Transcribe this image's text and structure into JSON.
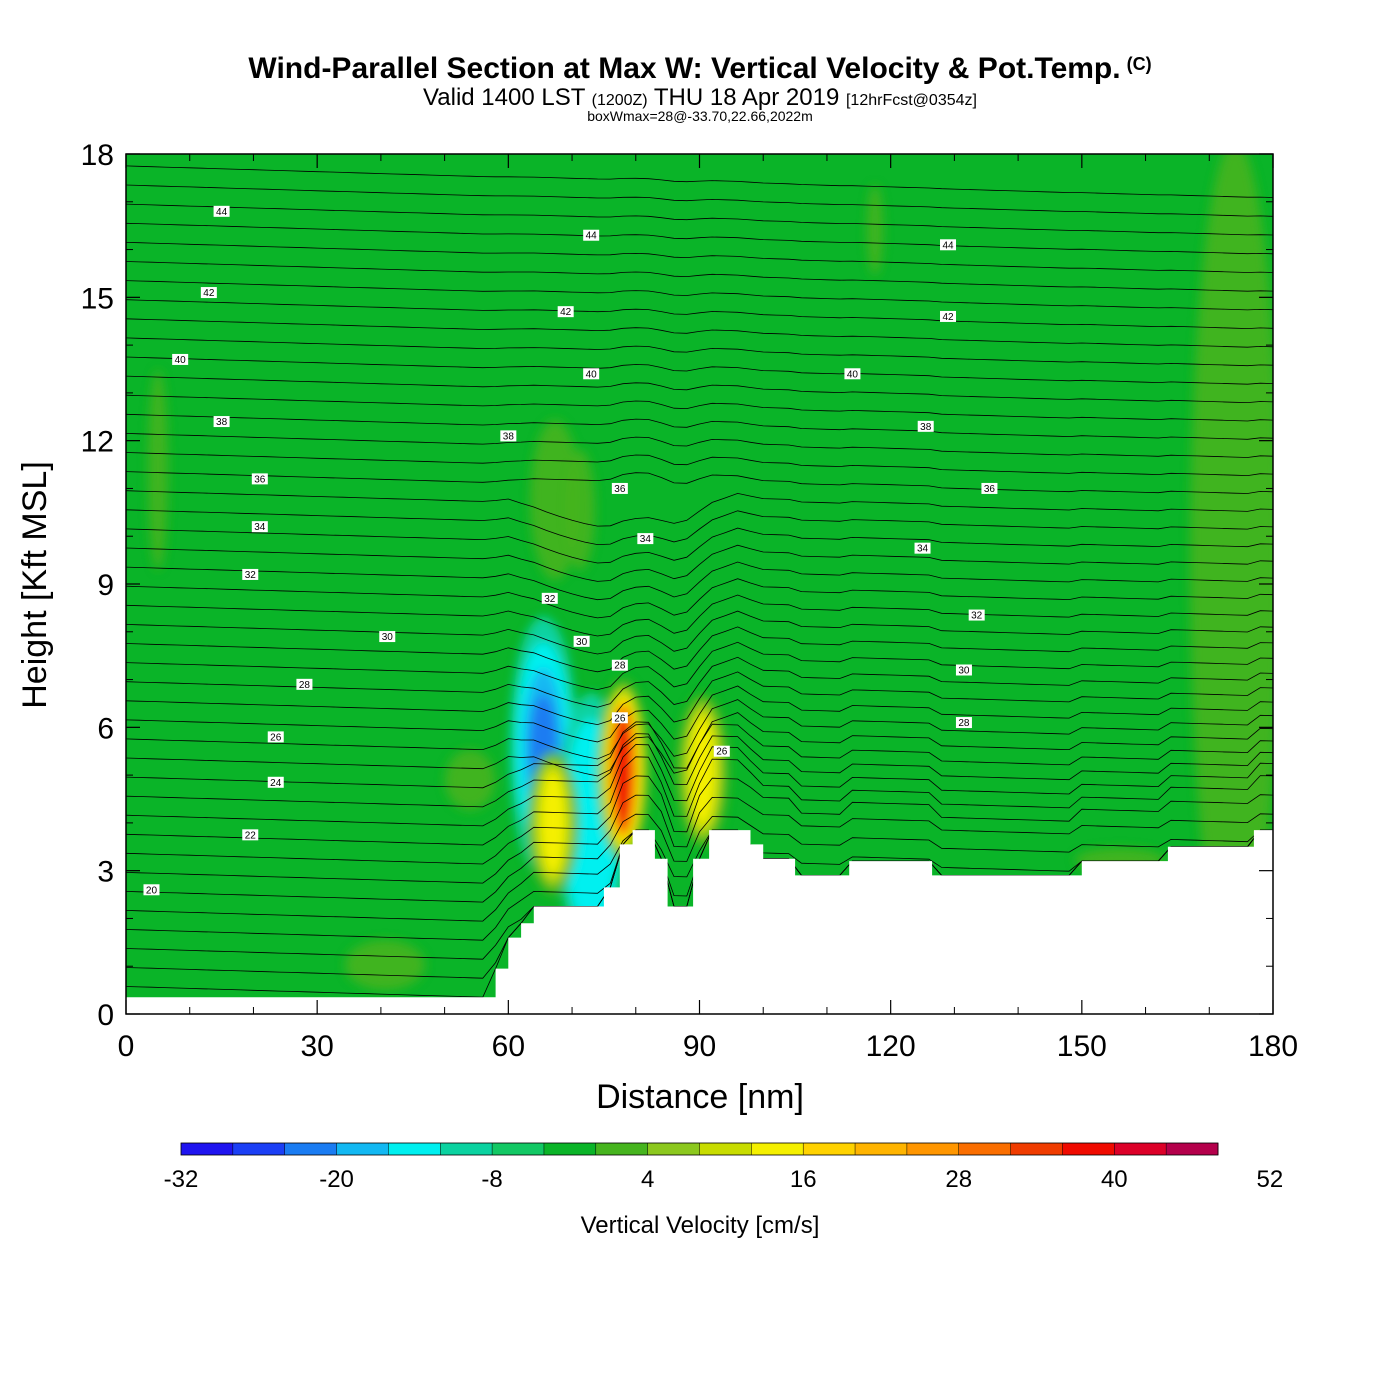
{
  "header": {
    "title": "Wind-Parallel Section at Max W: Vertical Velocity & Pot.Temp.",
    "copyright_mark": "(C)",
    "subtitle_main": "Valid 1400 LST",
    "subtitle_utc": "(1200Z)",
    "subtitle_date": "THU 18 Apr 2019",
    "subtitle_fcst": "[12hrFcst@0354z]",
    "box_info": "boxWmax=28@-33.70,22.66,2022m"
  },
  "chart_data": {
    "type": "heatmap",
    "title": "Wind-Parallel Section at Max W: Vertical Velocity & Pot.Temp.",
    "xlabel": "Distance [nm]",
    "ylabel": "Height [Kft MSL]",
    "xlim": [
      0,
      180
    ],
    "ylim": [
      0,
      18
    ],
    "x_ticks": [
      0,
      30,
      60,
      90,
      120,
      150,
      180
    ],
    "y_ticks": [
      0,
      3,
      6,
      9,
      12,
      15,
      18
    ],
    "background_value_cms": 0,
    "updraft_cores": [
      {
        "x": 67,
        "y_bottom": 2.5,
        "y_top": 5.5,
        "peak_cms": 16
      },
      {
        "x": 78,
        "y_bottom": 3.2,
        "y_top": 7.0,
        "peak_cms": 40
      },
      {
        "x": 90.5,
        "y_bottom": 3.5,
        "y_top": 6.7,
        "peak_cms": 16
      }
    ],
    "downdraft_cores": [
      {
        "x": 65.5,
        "y": 5.6,
        "peak_cms": -20
      },
      {
        "x": 73,
        "y": 4.0,
        "peak_cms": -12
      }
    ],
    "terrain_profile": [
      [
        0,
        0.35
      ],
      [
        58,
        0.35
      ],
      [
        58,
        0.95
      ],
      [
        60,
        0.95
      ],
      [
        60,
        1.6
      ],
      [
        62,
        1.6
      ],
      [
        62,
        1.9
      ],
      [
        64,
        1.9
      ],
      [
        64,
        2.25
      ],
      [
        75,
        2.25
      ],
      [
        75,
        2.65
      ],
      [
        77.5,
        2.65
      ],
      [
        77.5,
        3.55
      ],
      [
        79.5,
        3.55
      ],
      [
        79.5,
        3.85
      ],
      [
        83,
        3.85
      ],
      [
        83,
        3.25
      ],
      [
        85,
        3.25
      ],
      [
        85,
        2.25
      ],
      [
        89,
        2.25
      ],
      [
        89,
        3.25
      ],
      [
        91.5,
        3.25
      ],
      [
        91.5,
        3.85
      ],
      [
        98,
        3.85
      ],
      [
        98,
        3.55
      ],
      [
        100,
        3.55
      ],
      [
        100,
        3.25
      ],
      [
        105,
        3.25
      ],
      [
        105,
        2.9
      ],
      [
        113.5,
        2.9
      ],
      [
        113.5,
        3.2
      ],
      [
        126.5,
        3.2
      ],
      [
        126.5,
        2.9
      ],
      [
        150,
        2.9
      ],
      [
        150,
        3.2
      ],
      [
        163.5,
        3.2
      ],
      [
        163.5,
        3.5
      ],
      [
        177,
        3.5
      ],
      [
        177,
        3.85
      ],
      [
        180,
        3.85
      ]
    ],
    "theta_contour_labels": [
      {
        "value": "44",
        "x": 15,
        "y": 16.8
      },
      {
        "value": "44",
        "x": 73,
        "y": 16.3
      },
      {
        "value": "44",
        "x": 129,
        "y": 16.1
      },
      {
        "value": "42",
        "x": 13,
        "y": 15.1
      },
      {
        "value": "42",
        "x": 69,
        "y": 14.7
      },
      {
        "value": "42",
        "x": 129,
        "y": 14.6
      },
      {
        "value": "40",
        "x": 8.5,
        "y": 13.7
      },
      {
        "value": "40",
        "x": 73,
        "y": 13.4
      },
      {
        "value": "40",
        "x": 114,
        "y": 13.4
      },
      {
        "value": "38",
        "x": 15,
        "y": 12.4
      },
      {
        "value": "38",
        "x": 60,
        "y": 12.1
      },
      {
        "value": "38",
        "x": 125.5,
        "y": 12.3
      },
      {
        "value": "36",
        "x": 21,
        "y": 11.2
      },
      {
        "value": "36",
        "x": 77.5,
        "y": 11.0
      },
      {
        "value": "36",
        "x": 135.5,
        "y": 11.0
      },
      {
        "value": "34",
        "x": 21,
        "y": 10.2
      },
      {
        "value": "34",
        "x": 81.5,
        "y": 9.95
      },
      {
        "value": "34",
        "x": 125,
        "y": 9.75
      },
      {
        "value": "32",
        "x": 19.5,
        "y": 9.2
      },
      {
        "value": "32",
        "x": 66.5,
        "y": 8.7
      },
      {
        "value": "32",
        "x": 133.5,
        "y": 8.35
      },
      {
        "value": "30",
        "x": 41,
        "y": 7.9
      },
      {
        "value": "30",
        "x": 71.5,
        "y": 7.8
      },
      {
        "value": "30",
        "x": 131.5,
        "y": 7.2
      },
      {
        "value": "28",
        "x": 28,
        "y": 6.9
      },
      {
        "value": "28",
        "x": 77.5,
        "y": 7.3
      },
      {
        "value": "28",
        "x": 131.5,
        "y": 6.1
      },
      {
        "value": "26",
        "x": 23.5,
        "y": 5.8
      },
      {
        "value": "26",
        "x": 77.5,
        "y": 6.2
      },
      {
        "value": "26",
        "x": 93.5,
        "y": 5.5
      },
      {
        "value": "24",
        "x": 23.5,
        "y": 4.85
      },
      {
        "value": "22",
        "x": 19.5,
        "y": 3.75
      },
      {
        "value": "20",
        "x": 4,
        "y": 2.6
      }
    ]
  },
  "colorbar": {
    "label": "Vertical Velocity [cm/s]",
    "tick_labels": [
      "-32",
      "-20",
      "-8",
      "4",
      "16",
      "28",
      "40",
      "52"
    ],
    "min": -32,
    "max": 52,
    "colors": [
      "#1f14f0",
      "#1b3ff5",
      "#1a7cf2",
      "#12b8f2",
      "#00f0f0",
      "#0ad2a0",
      "#12c864",
      "#0ab428",
      "#46b41e",
      "#8cc81e",
      "#c8dc00",
      "#f5f000",
      "#ffd200",
      "#ffb400",
      "#ff9600",
      "#fa6e00",
      "#f03c00",
      "#f00a00",
      "#dc0028",
      "#b4004b"
    ]
  }
}
